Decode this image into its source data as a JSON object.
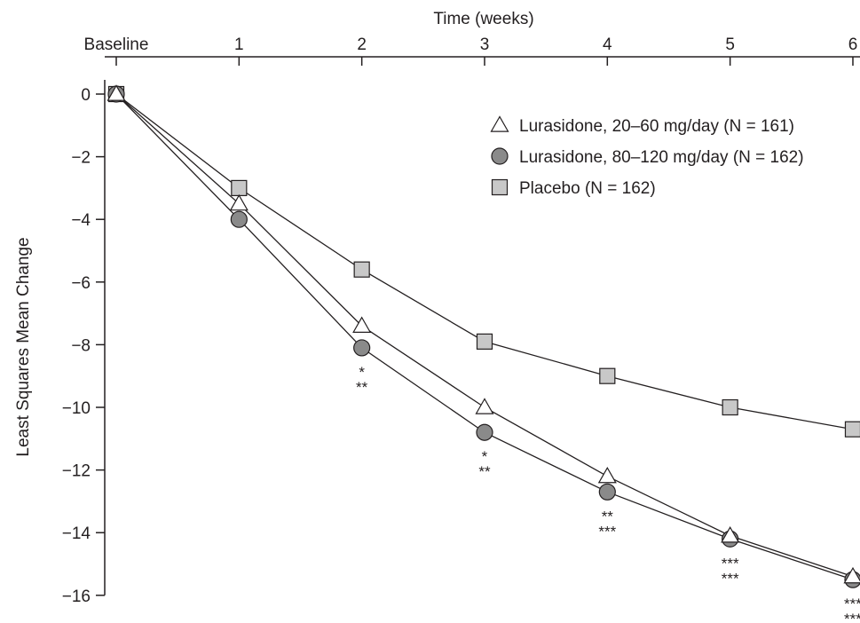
{
  "chart_data": {
    "type": "line",
    "title": "",
    "xlabel": "Time (weeks)",
    "ylabel": "Least Squares Mean Change",
    "x_axis_position": "top",
    "x": [
      0,
      1,
      2,
      3,
      4,
      5,
      6
    ],
    "x_tick_labels": [
      "Baseline",
      "1",
      "2",
      "3",
      "4",
      "5",
      "6"
    ],
    "ylim": [
      -16,
      0
    ],
    "y_ticks": [
      0,
      -2,
      -4,
      -6,
      -8,
      -10,
      -12,
      -14,
      -16
    ],
    "y_tick_labels": [
      "0",
      "−2",
      "−4",
      "−6",
      "−8",
      "−10",
      "−12",
      "−14",
      "−16"
    ],
    "grid": false,
    "legend_position": "top-right",
    "series": [
      {
        "name": "Lurasidone, 20–60 mg/day (N = 161)",
        "marker": "triangle-open",
        "values": [
          0,
          -3.5,
          -7.4,
          -10.0,
          -12.2,
          -14.1,
          -15.4
        ]
      },
      {
        "name": "Lurasidone, 80–120 mg/day (N = 162)",
        "marker": "circle-gray",
        "values": [
          0,
          -4.0,
          -8.1,
          -10.8,
          -12.7,
          -14.2,
          -15.5
        ]
      },
      {
        "name": "Placebo (N = 162)",
        "marker": "square-gray",
        "values": [
          0,
          -3.0,
          -5.6,
          -7.9,
          -9.0,
          -10.0,
          -10.7
        ]
      }
    ],
    "significance": [
      {
        "x": 2,
        "lines": [
          "*",
          "**"
        ]
      },
      {
        "x": 3,
        "lines": [
          "*",
          "**"
        ]
      },
      {
        "x": 4,
        "lines": [
          "**",
          "***"
        ]
      },
      {
        "x": 5,
        "lines": [
          "***",
          "***"
        ]
      },
      {
        "x": 6,
        "lines": [
          "***",
          "***"
        ]
      }
    ],
    "colors": {
      "line": "#231f20",
      "triangle_fill": "#ffffff",
      "circle_fill": "#8a8a8a",
      "square_fill": "#c8c8c8"
    }
  }
}
